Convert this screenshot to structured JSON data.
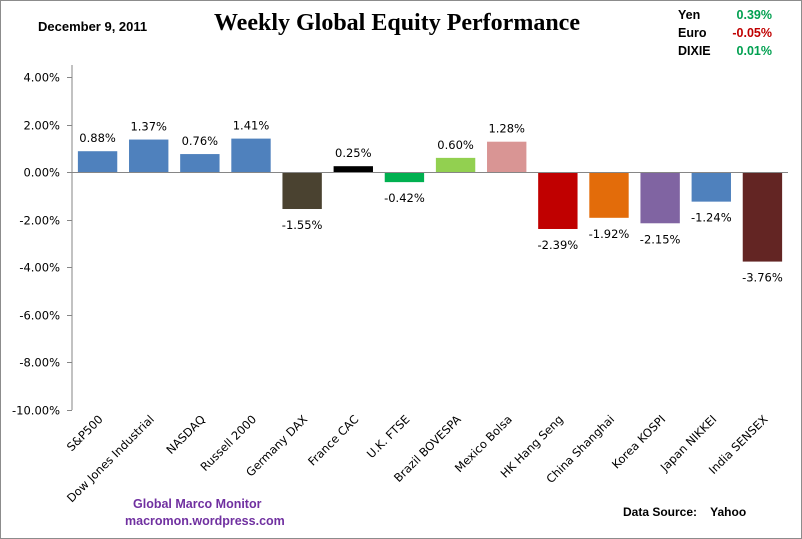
{
  "header": {
    "date": "December 9, 2011",
    "title": "Weekly Global Equity Performance"
  },
  "currencies": [
    {
      "name": "Yen",
      "value": "0.39%",
      "color": "#00a050"
    },
    {
      "name": "Euro",
      "value": "-0.05%",
      "color": "#c00000"
    },
    {
      "name": "DIXIE",
      "value": "0.01%",
      "color": "#00a050"
    }
  ],
  "footer": {
    "brand": "Global  Marco  Monitor",
    "site": "macromon.wordpress.com",
    "source": "Data Source:    Yahoo"
  },
  "chart_data": {
    "type": "bar",
    "title": "Weekly Global Equity Performance",
    "xlabel": "",
    "ylabel": "",
    "ylim": [
      -10,
      4
    ],
    "yticks": [
      4,
      2,
      0,
      -2,
      -4,
      -6,
      -8,
      -10
    ],
    "ytick_labels": [
      "4.00%",
      "2.00%",
      "0.00%",
      "-2.00%",
      "-4.00%",
      "-6.00%",
      "-8.00%",
      "-10.00%"
    ],
    "grid": false,
    "legend": "none",
    "categories": [
      "S&P500",
      "Dow Jones Industrial",
      "NASDAQ",
      "Russell 2000",
      "Germany DAX",
      "France CAC",
      "U.K. FTSE",
      "Brazil BOVESPA",
      "Mexico Bolsa",
      "HK  Hang Seng",
      "China Shanghai",
      "Korea KOSPI",
      "Japan NIKKEI",
      "India SENSEX"
    ],
    "values": [
      0.88,
      1.37,
      0.76,
      1.41,
      -1.55,
      0.25,
      -0.42,
      0.6,
      1.28,
      -2.39,
      -1.92,
      -2.15,
      -1.24,
      -3.76
    ],
    "labels": [
      "0.88%",
      "1.37%",
      "0.76%",
      "1.41%",
      "-1.55%",
      "0.25%",
      "-0.42%",
      "0.60%",
      "1.28%",
      "-2.39%",
      "-1.92%",
      "-2.15%",
      "-1.24%",
      "-3.76%"
    ],
    "colors": [
      "#4f81bd",
      "#4f81bd",
      "#4f81bd",
      "#4f81bd",
      "#4a4230",
      "#000000",
      "#00b050",
      "#92d050",
      "#d99594",
      "#c00000",
      "#e36c0a",
      "#8064a2",
      "#4f81bd",
      "#632523"
    ]
  }
}
